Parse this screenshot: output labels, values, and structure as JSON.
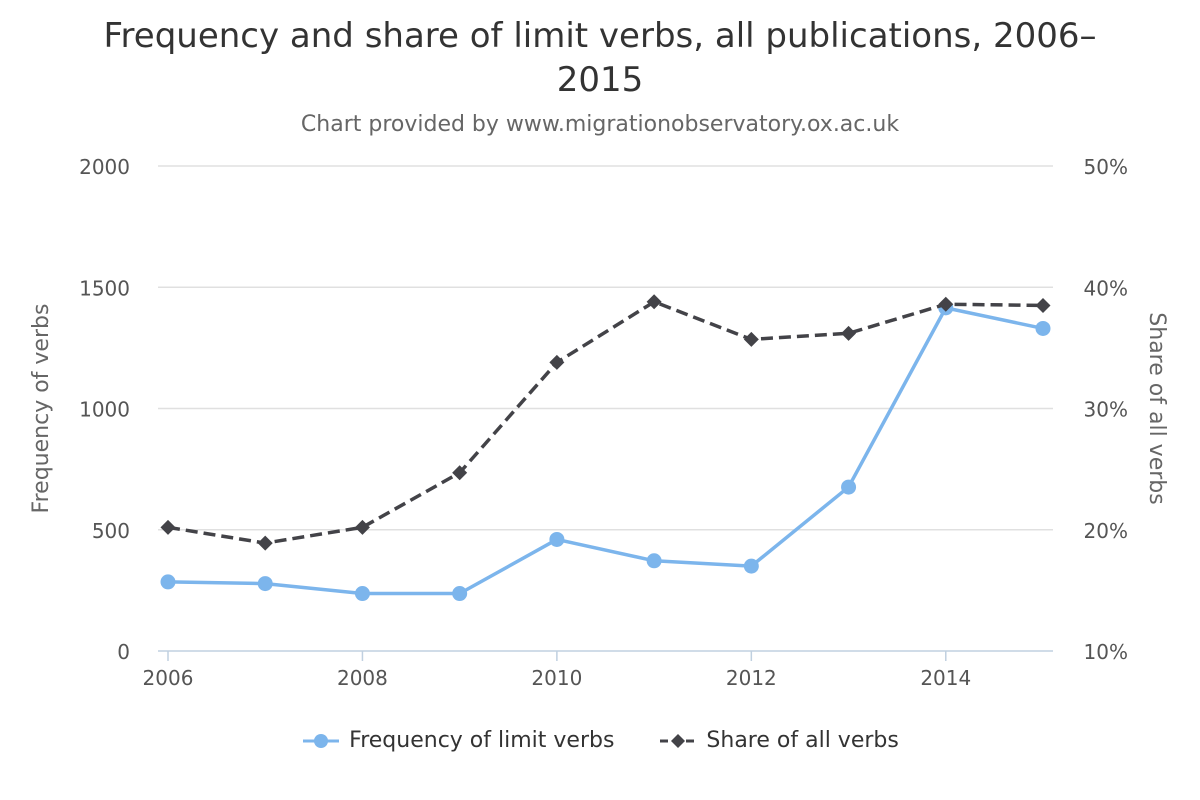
{
  "title_line1": "Frequency and share of limit verbs, all publications, 2006–",
  "title_line2": "2015",
  "subtitle": "Chart provided by www.migrationobservatory.ox.ac.uk",
  "colors": {
    "frequency": "#7cb5ec",
    "share": "#434348",
    "grid": "#e0e0e0",
    "axis_text": "#555555"
  },
  "chart_data": {
    "type": "line",
    "x": [
      2006,
      2007,
      2008,
      2009,
      2010,
      2011,
      2012,
      2013,
      2014,
      2015
    ],
    "x_ticks": [
      "2006",
      "2008",
      "2010",
      "2012",
      "2014"
    ],
    "xlim": [
      2006,
      2015
    ],
    "y_left": {
      "label": "Frequency of verbs",
      "ylim": [
        0,
        2000
      ],
      "ticks": [
        "0",
        "500",
        "1000",
        "1500",
        "2000"
      ]
    },
    "y_right": {
      "label": "Share of all verbs",
      "ylim": [
        10,
        50
      ],
      "ticks": [
        "10%",
        "20%",
        "30%",
        "40%",
        "50%"
      ]
    },
    "series": [
      {
        "name": "Frequency of limit verbs",
        "axis": "left",
        "style": "solid",
        "marker": "circle",
        "values": [
          285,
          278,
          237,
          237,
          460,
          372,
          350,
          676,
          1415,
          1330
        ]
      },
      {
        "name": "Share of all verbs",
        "axis": "right",
        "style": "dashed",
        "marker": "diamond",
        "values": [
          20.2,
          18.9,
          20.2,
          24.7,
          33.8,
          38.8,
          35.7,
          36.2,
          38.6,
          38.5
        ]
      }
    ],
    "grid": true,
    "legend_position": "bottom"
  }
}
